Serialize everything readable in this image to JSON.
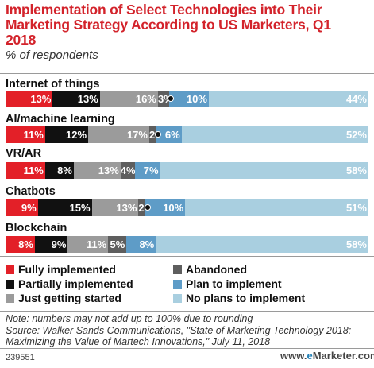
{
  "header": {
    "title": "Implementation of Select Technologies into Their Marketing Strategy According to US Marketers, Q1 2018",
    "subtitle": "% of respondents"
  },
  "chart_data": {
    "type": "bar",
    "stacked": true,
    "orientation": "horizontal",
    "categories": [
      "Internet of things",
      "AI/machine learning",
      "VR/AR",
      "Chatbots",
      "Blockchain"
    ],
    "series": [
      {
        "name": "Fully implemented",
        "color": "#e32028",
        "values": [
          13,
          11,
          11,
          9,
          8
        ],
        "labels": [
          "13%",
          "11%",
          "11%",
          "9%",
          "8%"
        ]
      },
      {
        "name": "Partially implemented",
        "color": "#111111",
        "values": [
          13,
          12,
          8,
          15,
          9
        ],
        "labels": [
          "13%",
          "12%",
          "8%",
          "15%",
          "9%"
        ]
      },
      {
        "name": "Just getting started",
        "color": "#9b9b9b",
        "values": [
          16,
          17,
          13,
          13,
          11
        ],
        "labels": [
          "16%",
          "17%",
          "13%",
          "13%",
          "11%"
        ]
      },
      {
        "name": "Abandoned",
        "color": "#5e5e5e",
        "values": [
          3,
          2,
          4,
          2,
          5
        ],
        "labels": [
          "3%",
          "2%",
          "4%",
          "2%",
          "5%"
        ]
      },
      {
        "name": "Plan to implement",
        "color": "#5e9cc7",
        "values": [
          1,
          1,
          0,
          1,
          0
        ],
        "labels": [
          "",
          "",
          "",
          "",
          ""
        ]
      },
      {
        "name": "Plan to implement",
        "color": "#5e9cc7",
        "values": [
          10,
          6,
          7,
          10,
          8
        ],
        "labels": [
          "10%",
          "6%",
          "7%",
          "10%",
          "8%"
        ]
      },
      {
        "name": "No plans to implement",
        "color": "#a9cfe0",
        "values": [
          44,
          52,
          58,
          51,
          58
        ],
        "labels": [
          "44%",
          "52%",
          "58%",
          "51%",
          "58%"
        ]
      }
    ],
    "legend": [
      {
        "label": "Fully implemented",
        "color": "#e32028"
      },
      {
        "label": "Partially implemented",
        "color": "#111111"
      },
      {
        "label": "Just getting started",
        "color": "#9b9b9b"
      },
      {
        "label": "Abandoned",
        "color": "#5e5e5e"
      },
      {
        "label": "Plan to implement",
        "color": "#5e9cc7"
      },
      {
        "label": "No plans to implement",
        "color": "#a9cfe0"
      }
    ],
    "xlim": [
      0,
      100
    ],
    "grid": false
  },
  "footer": {
    "note": "Note: numbers may not add up to 100% due to rounding",
    "source": "Source: Walker Sands Communications, \"State of Marketing Technology 2018: Maximizing the Value of Martech Innovations,\" July 11, 2018",
    "code": "239551",
    "brand_prefix": "www.",
    "brand_accent": "e",
    "brand_name": "Marketer.com"
  }
}
